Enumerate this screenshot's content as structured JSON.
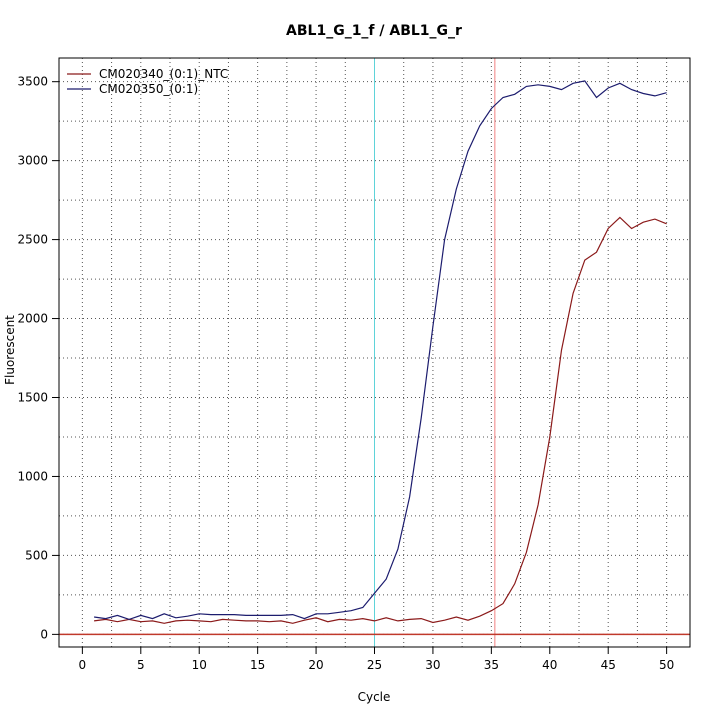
{
  "chart_data": {
    "type": "line",
    "title": "ABL1_G_1_f / ABL1_G_r",
    "xlabel": "Cycle",
    "ylabel": "Fluorescent",
    "xlim": [
      -2,
      52
    ],
    "ylim": [
      -80,
      3650
    ],
    "xticks": [
      0,
      5,
      10,
      15,
      20,
      25,
      30,
      35,
      40,
      45,
      50
    ],
    "yticks": [
      0,
      500,
      1000,
      1500,
      2000,
      2500,
      3000,
      3500
    ],
    "grid": true,
    "legend_position": "top-left",
    "threshold": {
      "y": 0,
      "color": "#c0392b"
    },
    "vlines": [
      {
        "x": 25.0,
        "color": "#5fd3d9"
      },
      {
        "x": 35.3,
        "color": "#f08080"
      }
    ],
    "series": [
      {
        "name": "CM020340_(0:1)_NTC",
        "color": "#8b1a1a",
        "x": [
          1,
          2,
          3,
          4,
          5,
          6,
          7,
          8,
          9,
          10,
          11,
          12,
          13,
          14,
          15,
          16,
          17,
          18,
          19,
          20,
          21,
          22,
          23,
          24,
          25,
          26,
          27,
          28,
          29,
          30,
          31,
          32,
          33,
          34,
          35,
          36,
          37,
          38,
          39,
          40,
          41,
          42,
          43,
          44,
          45,
          46,
          47,
          48,
          49,
          50
        ],
        "y": [
          85,
          95,
          80,
          95,
          80,
          85,
          70,
          85,
          90,
          85,
          80,
          95,
          90,
          85,
          85,
          80,
          85,
          70,
          90,
          105,
          80,
          95,
          90,
          100,
          85,
          105,
          85,
          95,
          100,
          75,
          90,
          110,
          90,
          115,
          150,
          195,
          320,
          520,
          820,
          1250,
          1800,
          2160,
          2370,
          2420,
          2570,
          2640,
          2570,
          2610,
          2630,
          2600
        ]
      },
      {
        "name": "CM020350_(0:1)",
        "color": "#1c1c6e",
        "x": [
          1,
          2,
          3,
          4,
          5,
          6,
          7,
          8,
          9,
          10,
          11,
          12,
          13,
          14,
          15,
          16,
          17,
          18,
          19,
          20,
          21,
          22,
          23,
          24,
          25,
          26,
          27,
          28,
          29,
          30,
          31,
          32,
          33,
          34,
          35,
          36,
          37,
          38,
          39,
          40,
          41,
          42,
          43,
          44,
          45,
          46,
          47,
          48,
          49,
          50
        ],
        "y": [
          110,
          100,
          120,
          95,
          120,
          100,
          130,
          105,
          115,
          130,
          125,
          125,
          125,
          120,
          120,
          120,
          120,
          125,
          100,
          130,
          130,
          140,
          150,
          170,
          260,
          350,
          540,
          870,
          1370,
          1950,
          2500,
          2820,
          3060,
          3220,
          3330,
          3400,
          3420,
          3470,
          3480,
          3470,
          3450,
          3490,
          3505,
          3400,
          3460,
          3490,
          3450,
          3425,
          3410,
          3430
        ]
      }
    ]
  }
}
